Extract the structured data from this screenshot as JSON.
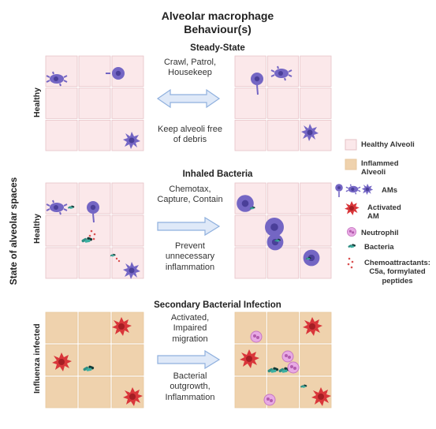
{
  "title_line1": "Alveolar macrophage",
  "title_line2": "Behaviour(s)",
  "y_axis_label": "State of alveolar spaces",
  "sections": [
    {
      "heading": "Steady-State",
      "side_label": "Healthy",
      "desc_top": [
        "Crawl, Patrol,",
        "Housekeep"
      ],
      "desc_bottom": [
        "Keep alveoli free",
        "of debris"
      ]
    },
    {
      "heading": "Inhaled Bacteria",
      "side_label": "Healthy",
      "desc_top": [
        "Chemotax,",
        "Capture, Contain"
      ],
      "desc_bottom": [
        "Prevent",
        "unnecessary",
        "inflammation"
      ]
    },
    {
      "heading": "Secondary Bacterial Infection",
      "side_label": "Influenza infected",
      "desc_top": [
        "Activated,",
        "Impaired",
        "migration"
      ],
      "desc_bottom": [
        "Bacterial",
        "outgrowth,",
        "Inflammation"
      ]
    }
  ],
  "legend": {
    "healthy_alveoli": "Healthy Alveoli",
    "inflamed_alveoli": [
      "Inflammed",
      "Alveoli"
    ],
    "ams": "AMs",
    "activated_am": [
      "Activated",
      "AM"
    ],
    "neutrophil": "Neutrophil",
    "bacteria": "Bacteria",
    "chemoattractants": [
      "Chemoattractants:",
      "C5a, formylated",
      "peptides"
    ]
  },
  "colors": {
    "healthy_fill": "#fbe8ea",
    "healthy_border": "#e6c2c6",
    "inflamed_fill": "#efd2ad",
    "am_purple": "#7466c4",
    "activated_red": "#d9363a",
    "neutrophil_pink": "#d98cd6",
    "bacteria_green": "#2f8f84",
    "arrow_blue": "#c9d9f2"
  }
}
